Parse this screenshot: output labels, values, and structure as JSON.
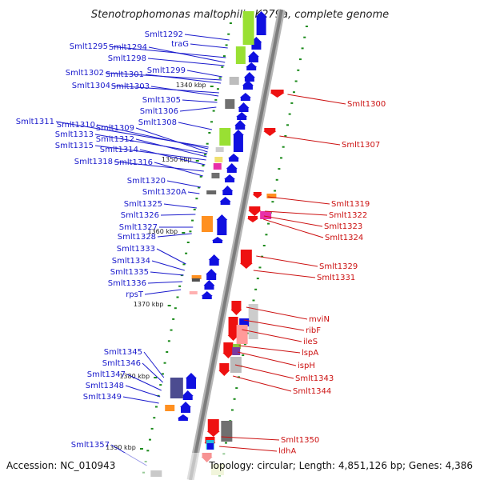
{
  "title": "Stenotrophomonas maltophilia K279a, complete genome",
  "footer": {
    "accession": "Accession: NC_010943",
    "topology": "Topology: circular; Length: 4,851,126 bp; Genes: 4,386"
  },
  "colors": {
    "forward_label": "#1a1acc",
    "reverse_label": "#cc1111",
    "forward_arrow": "#1010e0",
    "reverse_arrow": "#ee1111",
    "backbone": "#8c8c8c",
    "tick": "#1a8a1a"
  },
  "coordinate_labels": [
    "1340 kbp",
    "1350 kbp",
    "1360 kbp",
    "1370 kbp",
    "1380 kbp",
    "1390 kbp"
  ],
  "forward_labels": [
    "Smlt1292",
    "traG",
    "Smlt1295",
    "Smlt1294",
    "Smlt1298",
    "Smlt1299",
    "Smlt1302",
    "Smlt1301",
    "Smlt1304",
    "Smlt1303",
    "Smlt1305",
    "Smlt1306",
    "Smlt1308",
    "Smlt1311",
    "Smlt1310",
    "Smlt1309",
    "Smlt1313",
    "Smlt1312",
    "Smlt1315",
    "Smlt1314",
    "Smlt1318",
    "Smlt1316",
    "Smlt1320",
    "Smlt1320A",
    "Smlt1325",
    "Smlt1326",
    "Smlt1327",
    "Smlt1328",
    "Smlt1333",
    "Smlt1334",
    "Smlt1335",
    "Smlt1336",
    "rpsT",
    "Smlt1345",
    "Smlt1346",
    "Smlt1347",
    "Smlt1348",
    "Smlt1349",
    "Smlt1357"
  ],
  "reverse_labels": [
    "Smlt1300",
    "Smlt1307",
    "Smlt1319",
    "Smlt1322",
    "Smlt1323",
    "Smlt1324",
    "Smlt1329",
    "Smlt1331",
    "mviN",
    "ribF",
    "ileS",
    "lspA",
    "ispH",
    "Smlt1343",
    "Smlt1344",
    "Smlt1350",
    "ldhA"
  ]
}
